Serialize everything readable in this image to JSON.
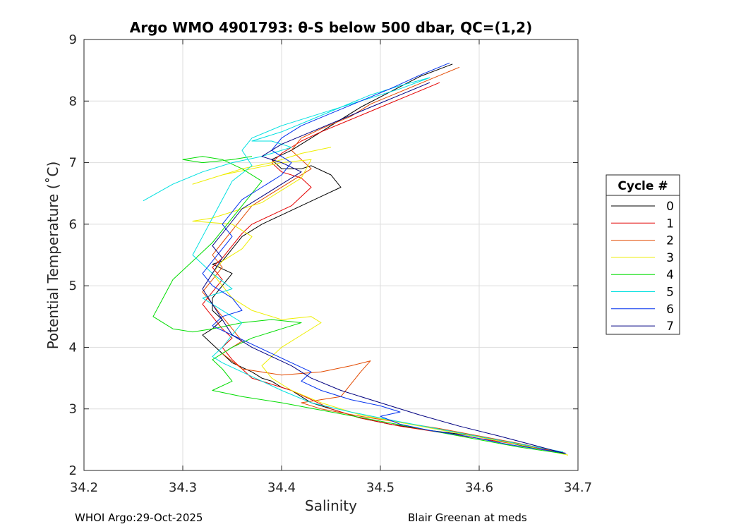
{
  "chart_data": {
    "type": "line",
    "title": "Argo WMO 4901793: θ-S below 500 dbar,  QC=(1,2)",
    "xlabel": "Salinity",
    "ylabel": "Potential Temperature (˚C)",
    "xlim": [
      34.2,
      34.7
    ],
    "ylim": [
      2,
      9
    ],
    "xticks": [
      "34.2",
      "34.3",
      "34.4",
      "34.5",
      "34.6",
      "34.7"
    ],
    "yticks": [
      "2",
      "3",
      "4",
      "5",
      "6",
      "7",
      "8",
      "9"
    ],
    "grid": true,
    "legend": {
      "title": "Cycle #",
      "placement": "right"
    },
    "series": [
      {
        "name": "0",
        "color": "#000000",
        "x": [
          34.573,
          34.54,
          34.51,
          34.48,
          34.45,
          34.43,
          34.41,
          34.39,
          34.4,
          34.42,
          34.43,
          34.45,
          34.46,
          34.44,
          34.42,
          34.4,
          34.38,
          34.36,
          34.35,
          34.34,
          34.33,
          34.35,
          34.34,
          34.33,
          34.33,
          34.34,
          34.33,
          34.32,
          34.33,
          34.34,
          34.35,
          34.37,
          34.38,
          34.39,
          34.4,
          34.41,
          34.42,
          34.43,
          34.45,
          34.48,
          34.51,
          34.55,
          34.6,
          34.65,
          34.686
        ],
        "y": [
          8.6,
          8.4,
          8.15,
          7.9,
          7.6,
          7.4,
          7.2,
          7.05,
          6.9,
          6.9,
          6.95,
          6.8,
          6.6,
          6.45,
          6.3,
          6.15,
          6.0,
          5.8,
          5.6,
          5.4,
          5.35,
          5.2,
          5.0,
          4.8,
          4.6,
          4.45,
          4.3,
          4.2,
          4.05,
          3.9,
          3.75,
          3.6,
          3.5,
          3.45,
          3.35,
          3.3,
          3.2,
          3.1,
          3.0,
          2.85,
          2.75,
          2.65,
          2.55,
          2.38,
          2.28
        ]
      },
      {
        "name": "1",
        "color": "#e40000",
        "x": [
          34.56,
          34.53,
          34.5,
          34.47,
          34.44,
          34.42,
          34.4,
          34.39,
          34.4,
          34.42,
          34.43,
          34.42,
          34.41,
          34.39,
          34.37,
          34.36,
          34.35,
          34.34,
          34.33,
          34.34,
          34.33,
          34.32,
          34.33,
          34.34,
          34.35,
          34.34,
          34.35,
          34.36,
          34.37,
          34.39,
          34.41,
          34.43,
          34.45,
          34.48,
          34.52,
          34.56,
          34.6,
          34.64,
          34.687
        ],
        "y": [
          8.3,
          8.1,
          7.9,
          7.7,
          7.5,
          7.35,
          7.15,
          7.0,
          6.85,
          6.75,
          6.6,
          6.45,
          6.3,
          6.15,
          6.0,
          5.85,
          5.65,
          5.45,
          5.3,
          5.1,
          4.9,
          4.7,
          4.5,
          4.3,
          4.15,
          4.0,
          3.8,
          3.65,
          3.5,
          3.4,
          3.3,
          3.15,
          3.0,
          2.85,
          2.72,
          2.62,
          2.52,
          2.42,
          2.28
        ]
      },
      {
        "name": "2",
        "color": "#e34a00",
        "x": [
          34.58,
          34.55,
          34.52,
          34.49,
          34.47,
          34.44,
          34.42,
          34.41,
          34.42,
          34.43,
          34.41,
          34.39,
          34.37,
          34.36,
          34.35,
          34.34,
          34.33,
          34.34,
          34.33,
          34.32,
          34.33,
          34.34,
          34.35,
          34.36,
          34.34,
          34.36,
          34.4,
          34.44,
          34.47,
          34.49,
          34.48,
          34.47,
          34.46,
          34.44,
          34.42,
          34.44,
          34.48,
          34.52,
          34.56,
          34.6,
          34.64,
          34.688
        ],
        "y": [
          8.55,
          8.35,
          8.15,
          7.95,
          7.75,
          7.55,
          7.4,
          7.2,
          7.05,
          6.9,
          6.7,
          6.5,
          6.3,
          6.1,
          5.9,
          5.7,
          5.5,
          5.3,
          5.1,
          4.9,
          4.7,
          4.5,
          4.3,
          4.1,
          3.9,
          3.65,
          3.55,
          3.6,
          3.7,
          3.78,
          3.6,
          3.4,
          3.2,
          3.15,
          3.1,
          3.0,
          2.88,
          2.78,
          2.68,
          2.56,
          2.44,
          2.28
        ]
      },
      {
        "name": "3",
        "color": "#eeee00",
        "x": [
          34.45,
          34.42,
          34.39,
          34.36,
          34.33,
          34.31,
          34.34,
          34.37,
          34.4,
          34.43,
          34.42,
          34.4,
          34.38,
          34.35,
          34.33,
          34.31,
          34.35,
          34.37,
          34.36,
          34.34,
          34.33,
          34.34,
          34.35,
          34.37,
          34.4,
          34.43,
          34.44,
          34.42,
          34.4,
          34.39,
          34.38,
          34.39,
          34.41,
          34.44,
          34.48,
          34.52,
          34.56,
          34.6,
          34.64,
          34.69
        ],
        "y": [
          7.25,
          7.15,
          7.0,
          6.9,
          6.75,
          6.65,
          6.8,
          6.9,
          7.0,
          7.05,
          6.75,
          6.55,
          6.35,
          6.2,
          6.1,
          6.05,
          6.0,
          5.8,
          5.6,
          5.4,
          5.2,
          5.0,
          4.8,
          4.6,
          4.45,
          4.5,
          4.4,
          4.2,
          4.0,
          3.85,
          3.7,
          3.5,
          3.3,
          3.1,
          2.9,
          2.78,
          2.66,
          2.54,
          2.42,
          2.25
        ]
      },
      {
        "name": "4",
        "color": "#00dd00",
        "x": [
          34.37,
          34.35,
          34.32,
          34.3,
          34.32,
          34.34,
          34.36,
          34.38,
          34.37,
          34.36,
          34.35,
          34.34,
          34.33,
          34.31,
          34.29,
          34.28,
          34.27,
          34.29,
          34.31,
          34.33,
          34.36,
          34.39,
          34.42,
          34.4,
          34.37,
          34.35,
          34.33,
          34.34,
          34.35,
          34.33,
          34.36,
          34.4,
          34.44,
          34.48,
          34.52,
          34.56,
          34.6,
          34.64,
          34.687
        ],
        "y": [
          7.1,
          7.05,
          7.0,
          7.05,
          7.1,
          7.05,
          6.9,
          6.7,
          6.5,
          6.3,
          6.1,
          5.9,
          5.7,
          5.4,
          5.1,
          4.8,
          4.5,
          4.3,
          4.25,
          4.3,
          4.4,
          4.45,
          4.4,
          4.3,
          4.15,
          4.0,
          3.8,
          3.65,
          3.45,
          3.3,
          3.2,
          3.1,
          2.98,
          2.86,
          2.74,
          2.62,
          2.5,
          2.38,
          2.27
        ]
      },
      {
        "name": "5",
        "color": "#00e0e0",
        "x": [
          34.26,
          34.29,
          34.32,
          34.35,
          34.38,
          34.41,
          34.39,
          34.37,
          34.4,
          34.43,
          34.46,
          34.49,
          34.52,
          34.55,
          34.52,
          34.48,
          34.44,
          34.4,
          34.37,
          34.36,
          34.37,
          34.35,
          34.34,
          34.33,
          34.32,
          34.31,
          34.33,
          34.35,
          34.32,
          34.34,
          34.36,
          34.35,
          34.34,
          34.33,
          34.34,
          34.36,
          34.38,
          34.4,
          34.43,
          34.47,
          34.51,
          34.55,
          34.59,
          34.63,
          34.685
        ],
        "y": [
          6.38,
          6.65,
          6.85,
          7.0,
          7.1,
          7.25,
          7.35,
          7.35,
          7.5,
          7.7,
          7.9,
          8.1,
          8.25,
          8.38,
          8.2,
          8.0,
          7.8,
          7.6,
          7.4,
          7.2,
          6.95,
          6.7,
          6.4,
          6.1,
          5.8,
          5.5,
          5.2,
          4.95,
          4.8,
          4.6,
          4.4,
          4.2,
          4.0,
          3.85,
          3.75,
          3.6,
          3.45,
          3.3,
          3.1,
          2.95,
          2.82,
          2.7,
          2.58,
          2.46,
          2.3
        ]
      },
      {
        "name": "6",
        "color": "#0030ee",
        "x": [
          34.57,
          34.54,
          34.51,
          34.48,
          34.45,
          34.42,
          34.4,
          34.39,
          34.41,
          34.4,
          34.38,
          34.36,
          34.35,
          34.34,
          34.35,
          34.34,
          34.33,
          34.32,
          34.33,
          34.35,
          34.36,
          34.34,
          34.33,
          34.35,
          34.37,
          34.39,
          34.41,
          34.43,
          34.42,
          34.44,
          34.47,
          34.5,
          34.52,
          34.5,
          34.52,
          34.55,
          34.59,
          34.63,
          34.688
        ],
        "y": [
          8.62,
          8.42,
          8.2,
          8.0,
          7.8,
          7.6,
          7.4,
          7.2,
          7.0,
          6.8,
          6.6,
          6.4,
          6.2,
          6.0,
          5.8,
          5.6,
          5.4,
          5.2,
          5.0,
          4.8,
          4.6,
          4.5,
          4.35,
          4.2,
          4.05,
          3.9,
          3.75,
          3.6,
          3.45,
          3.3,
          3.15,
          3.05,
          2.95,
          2.88,
          2.75,
          2.65,
          2.55,
          2.42,
          2.28
        ]
      },
      {
        "name": "7",
        "color": "#000080",
        "x": [
          34.55,
          34.52,
          34.49,
          34.46,
          34.43,
          34.4,
          34.38,
          34.4,
          34.42,
          34.4,
          34.38,
          34.36,
          34.35,
          34.34,
          34.33,
          34.34,
          34.33,
          34.32,
          34.33,
          34.34,
          34.35,
          34.37,
          34.39,
          34.41,
          34.43,
          34.46,
          34.5,
          34.54,
          34.58,
          34.62,
          34.686
        ],
        "y": [
          8.3,
          8.1,
          7.9,
          7.7,
          7.5,
          7.3,
          7.1,
          7.0,
          6.85,
          6.65,
          6.45,
          6.25,
          6.05,
          5.85,
          5.65,
          5.45,
          5.2,
          4.95,
          4.7,
          4.45,
          4.2,
          4.0,
          3.85,
          3.7,
          3.5,
          3.3,
          3.1,
          2.9,
          2.72,
          2.56,
          2.28
        ]
      }
    ]
  },
  "footer": {
    "left": "WHOI Argo:29-Oct-2025",
    "right": "Blair Greenan at meds"
  }
}
